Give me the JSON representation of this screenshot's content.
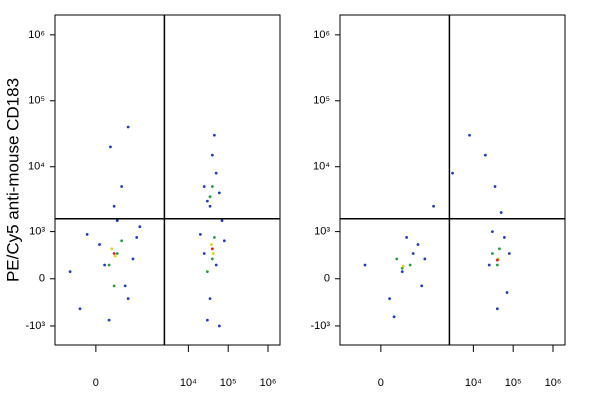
{
  "chart_data": [
    {
      "type": "scatter",
      "x_scale": "biexponential",
      "y_scale": "biexponential",
      "y_label": "PE/Cy5 anti-mouse CD183",
      "xlim": [
        -500,
        2000000
      ],
      "ylim": [
        -2000,
        2000000
      ],
      "xticks": [
        0,
        {
          "value": 10000,
          "label": "10⁴"
        },
        {
          "value": 100000,
          "label": "10⁵"
        },
        {
          "value": 1000000,
          "label": "10⁶"
        }
      ],
      "yticks": [
        {
          "value": -1000,
          "label": "-10³"
        },
        0,
        {
          "value": 1000,
          "label": "10³"
        },
        {
          "value": 10000,
          "label": "10⁴"
        },
        {
          "value": 100000,
          "label": "10⁵"
        },
        {
          "value": 1000000,
          "label": "10⁶"
        }
      ],
      "gates": {
        "x": 2500,
        "y": 1600
      },
      "series": [
        {
          "color": "#1f3cc8",
          "x": [
            50,
            300,
            -200,
            500,
            150,
            80,
            400,
            20,
            250,
            -100,
            600,
            120,
            200,
            90,
            300,
            -50,
            30000,
            50000,
            20000,
            70000,
            35000,
            60000,
            25000,
            80000,
            30000,
            50000,
            25000,
            40000,
            60000,
            35000,
            45000
          ],
          "y": [
            200,
            -300,
            100,
            800,
            1500,
            -800,
            300,
            600,
            -100,
            -500,
            1200,
            2500,
            5000,
            20000,
            40000,
            900,
            -800,
            200,
            900,
            1500,
            -300,
            -1000,
            400,
            700,
            3000,
            8000,
            5000,
            15000,
            4000,
            2500,
            30000
          ]
        },
        {
          "color": "#20a040",
          "x": [
            150,
            80,
            200,
            120,
            40000,
            45000,
            30000,
            40000,
            35000
          ],
          "y": [
            400,
            200,
            700,
            -100,
            300,
            800,
            100,
            5000,
            3500
          ]
        },
        {
          "color": "#e0d020",
          "x": [
            130,
            100,
            42000,
            38000
          ],
          "y": [
            350,
            500,
            400,
            600
          ]
        },
        {
          "color": "#e02010",
          "x": [
            120,
            40000
          ],
          "y": [
            400,
            500
          ]
        }
      ]
    },
    {
      "type": "scatter",
      "x_scale": "biexponential",
      "y_scale": "biexponential",
      "xlim": [
        -500,
        2000000
      ],
      "ylim": [
        -2000,
        2000000
      ],
      "xticks": [
        0,
        {
          "value": 10000,
          "label": "10⁴"
        },
        {
          "value": 100000,
          "label": "10⁵"
        },
        {
          "value": 1000000,
          "label": "10⁶"
        }
      ],
      "yticks": [
        {
          "value": -1000,
          "label": "-10³"
        },
        0,
        {
          "value": 1000,
          "label": "10³"
        },
        {
          "value": 10000,
          "label": "10⁴"
        },
        {
          "value": 100000,
          "label": "10⁵"
        },
        {
          "value": 1000000,
          "label": "10⁶"
        }
      ],
      "gates": {
        "x": 2500,
        "y": 1600
      },
      "series": [
        {
          "color": "#1f3cc8",
          "x": [
            150,
            50,
            300,
            -100,
            500,
            200,
            80,
            400,
            600,
            1000,
            3000,
            8000,
            20000,
            40000,
            60000,
            25000,
            70000,
            30000,
            50000,
            80000,
            35000
          ],
          "y": [
            100,
            -300,
            400,
            200,
            -100,
            800,
            -700,
            600,
            300,
            2500,
            8000,
            30000,
            15000,
            -500,
            800,
            200,
            -200,
            1000,
            2000,
            400,
            5000
          ]
        },
        {
          "color": "#20a040",
          "x": [
            150,
            100,
            250,
            40000,
            45000,
            30000
          ],
          "y": [
            150,
            300,
            200,
            200,
            500,
            400
          ]
        },
        {
          "color": "#e0d020",
          "x": [
            160,
            42000
          ],
          "y": [
            180,
            300
          ]
        },
        {
          "color": "#e02010",
          "x": [
            40000
          ],
          "y": [
            280
          ]
        }
      ]
    }
  ]
}
